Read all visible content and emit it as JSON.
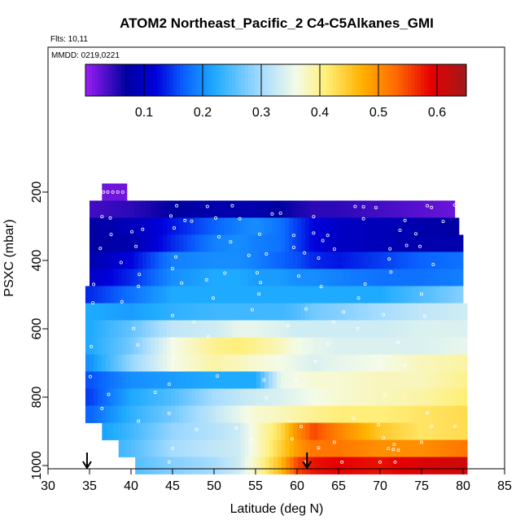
{
  "chart_data": {
    "type": "heatmap",
    "title": "ATOM2 Northeast_Pacific_2 C4-C5Alkanes_GMI",
    "flights_label": "Flts: 10,11",
    "dates_label": "MMDD: 0219,0221",
    "xlabel": "Latitude (deg N)",
    "ylabel": "PSXC (mbar)",
    "xlim": [
      30,
      85
    ],
    "ylim": [
      1000,
      100
    ],
    "x_ticks": [
      30,
      35,
      40,
      45,
      50,
      55,
      60,
      65,
      70,
      75,
      80,
      85
    ],
    "y_ticks": [
      200,
      400,
      600,
      800,
      1000
    ],
    "colorbar": {
      "range": [
        0,
        0.65
      ],
      "ticks": [
        0.1,
        0.2,
        0.3,
        0.4,
        0.5,
        0.6
      ],
      "tick_labels": [
        "0.1",
        "0.2",
        "0.3",
        "0.4",
        "0.5",
        "0.6"
      ],
      "stops": [
        {
          "v": 0.0,
          "c": "#9b1ef5"
        },
        {
          "v": 0.07,
          "c": "#0000a0"
        },
        {
          "v": 0.12,
          "c": "#0000dc"
        },
        {
          "v": 0.17,
          "c": "#0a64ff"
        },
        {
          "v": 0.22,
          "c": "#1eaaff"
        },
        {
          "v": 0.3,
          "c": "#a6dcff"
        },
        {
          "v": 0.36,
          "c": "#f4fbe8"
        },
        {
          "v": 0.41,
          "c": "#ffef7a"
        },
        {
          "v": 0.47,
          "c": "#ffb400"
        },
        {
          "v": 0.53,
          "c": "#ff6a00"
        },
        {
          "v": 0.59,
          "c": "#e60000"
        },
        {
          "v": 0.65,
          "c": "#a01a1a"
        }
      ]
    },
    "lat_knots": [
      35,
      40,
      45,
      50,
      53,
      55,
      58,
      60,
      62,
      65,
      70,
      75,
      80
    ],
    "rows": [
      {
        "p": 200,
        "lat": [
          36.5,
          39.5
        ],
        "v": [
          0.02,
          0.02,
          0.02,
          0.02,
          0.02,
          0.02,
          0.02,
          0.02,
          0.02,
          0.02,
          0.02,
          0.02,
          0.02
        ]
      },
      {
        "p": 250,
        "lat": [
          35,
          79
        ],
        "v": [
          0.04,
          0.05,
          0.07,
          0.08,
          0.08,
          0.08,
          0.07,
          0.06,
          0.05,
          0.05,
          0.04,
          0.03,
          0.02
        ]
      },
      {
        "p": 300,
        "lat": [
          35,
          79.5
        ],
        "v": [
          0.07,
          0.09,
          0.13,
          0.17,
          0.19,
          0.2,
          0.18,
          0.15,
          0.12,
          0.1,
          0.09,
          0.08,
          0.07
        ]
      },
      {
        "p": 350,
        "lat": [
          35,
          80
        ],
        "v": [
          0.07,
          0.08,
          0.14,
          0.19,
          0.2,
          0.19,
          0.18,
          0.15,
          0.12,
          0.1,
          0.09,
          0.08,
          0.08
        ]
      },
      {
        "p": 400,
        "lat": [
          35,
          80
        ],
        "v": [
          0.08,
          0.12,
          0.19,
          0.2,
          0.2,
          0.19,
          0.17,
          0.16,
          0.14,
          0.13,
          0.15,
          0.17,
          0.18
        ]
      },
      {
        "p": 450,
        "lat": [
          35,
          80
        ],
        "v": [
          0.1,
          0.14,
          0.2,
          0.22,
          0.22,
          0.21,
          0.21,
          0.2,
          0.2,
          0.19,
          0.18,
          0.18,
          0.19
        ]
      },
      {
        "p": 500,
        "lat": [
          34.5,
          80
        ],
        "v": [
          0.14,
          0.18,
          0.22,
          0.22,
          0.22,
          0.22,
          0.22,
          0.22,
          0.22,
          0.22,
          0.22,
          0.25,
          0.28
        ]
      },
      {
        "p": 550,
        "lat": [
          34.5,
          80.5
        ],
        "v": [
          0.22,
          0.21,
          0.23,
          0.24,
          0.24,
          0.24,
          0.24,
          0.25,
          0.27,
          0.28,
          0.3,
          0.32,
          0.33
        ]
      },
      {
        "p": 600,
        "lat": [
          34.5,
          80.5
        ],
        "v": [
          0.22,
          0.26,
          0.32,
          0.33,
          0.35,
          0.35,
          0.34,
          0.33,
          0.33,
          0.33,
          0.33,
          0.34,
          0.34
        ]
      },
      {
        "p": 650,
        "lat": [
          34.5,
          80.5
        ],
        "v": [
          0.22,
          0.27,
          0.36,
          0.4,
          0.41,
          0.4,
          0.38,
          0.36,
          0.35,
          0.34,
          0.34,
          0.34,
          0.35
        ]
      },
      {
        "p": 700,
        "lat": [
          34.5,
          80.5
        ],
        "v": [
          0.2,
          0.29,
          0.36,
          0.39,
          0.38,
          0.37,
          0.36,
          0.35,
          0.34,
          0.35,
          0.36,
          0.38,
          0.39
        ]
      },
      {
        "p": 750,
        "lat": [
          34.5,
          80.5
        ],
        "v": [
          0.16,
          0.2,
          0.21,
          0.22,
          0.22,
          0.22,
          0.35,
          0.36,
          0.37,
          0.37,
          0.38,
          0.38,
          0.4
        ]
      },
      {
        "p": 800,
        "lat": [
          34.5,
          80.5
        ],
        "v": [
          0.15,
          0.22,
          0.25,
          0.3,
          0.32,
          0.33,
          0.34,
          0.35,
          0.36,
          0.37,
          0.38,
          0.39,
          0.41
        ]
      },
      {
        "p": 850,
        "lat": [
          34.5,
          80.5
        ],
        "v": [
          0.17,
          0.23,
          0.27,
          0.32,
          0.35,
          0.37,
          0.38,
          0.39,
          0.4,
          0.41,
          0.41,
          0.42,
          0.43
        ]
      },
      {
        "p": 900,
        "lat": [
          36.5,
          80.5
        ],
        "v": [
          0.2,
          0.24,
          0.29,
          0.31,
          0.33,
          0.37,
          0.43,
          0.5,
          0.55,
          0.51,
          0.45,
          0.42,
          0.43
        ]
      },
      {
        "p": 950,
        "lat": [
          38.5,
          80.5
        ],
        "v": [
          0.22,
          0.25,
          0.3,
          0.32,
          0.33,
          0.37,
          0.44,
          0.49,
          0.52,
          0.52,
          0.5,
          0.5,
          0.52
        ]
      },
      {
        "p": 1000,
        "lat": [
          40.5,
          80.5
        ],
        "v": [
          0.22,
          0.25,
          0.28,
          0.3,
          0.33,
          0.38,
          0.46,
          0.55,
          0.58,
          0.59,
          0.58,
          0.6,
          0.61
        ]
      }
    ],
    "arrows": [
      {
        "x": 34.7
      },
      {
        "x": 61.2
      }
    ],
    "points_note": "white open circles mark observation locations",
    "points": [
      [
        36.7,
        200
      ],
      [
        37.2,
        200
      ],
      [
        37.8,
        200
      ],
      [
        38.4,
        200
      ],
      [
        39.0,
        200
      ],
      [
        45.5,
        240
      ],
      [
        49.2,
        242
      ],
      [
        52.2,
        240
      ],
      [
        67.0,
        242
      ],
      [
        68.0,
        243
      ],
      [
        69.5,
        246
      ],
      [
        75.7,
        240
      ],
      [
        76.2,
        245
      ],
      [
        79.0,
        238
      ],
      [
        36.5,
        272
      ],
      [
        37.5,
        276
      ],
      [
        44.8,
        270
      ],
      [
        46.5,
        283
      ],
      [
        47.3,
        285
      ],
      [
        50.2,
        276
      ],
      [
        53.1,
        278
      ],
      [
        57.0,
        264
      ],
      [
        58.0,
        262
      ],
      [
        62.0,
        272
      ],
      [
        68.0,
        278
      ],
      [
        73.0,
        283
      ],
      [
        77.6,
        286
      ],
      [
        37.6,
        324
      ],
      [
        40.1,
        316
      ],
      [
        41.4,
        309
      ],
      [
        45.2,
        305
      ],
      [
        50.6,
        331
      ],
      [
        55.5,
        323
      ],
      [
        59.6,
        327
      ],
      [
        62.0,
        320
      ],
      [
        63.7,
        327
      ],
      [
        72.4,
        312
      ],
      [
        74.3,
        322
      ],
      [
        36.3,
        365
      ],
      [
        40.6,
        359
      ],
      [
        52.0,
        346
      ],
      [
        59.6,
        362
      ],
      [
        63.1,
        342
      ],
      [
        64.5,
        367
      ],
      [
        71.2,
        366
      ],
      [
        73.2,
        356
      ],
      [
        74.8,
        359
      ],
      [
        38.8,
        406
      ],
      [
        45.4,
        390
      ],
      [
        54.2,
        385
      ],
      [
        56.3,
        381
      ],
      [
        60.9,
        378
      ],
      [
        62.6,
        393
      ],
      [
        71.1,
        396
      ],
      [
        76.4,
        412
      ],
      [
        41.0,
        441
      ],
      [
        45.0,
        424
      ],
      [
        51.3,
        437
      ],
      [
        55.2,
        436
      ],
      [
        60.2,
        446
      ],
      [
        71.3,
        434
      ],
      [
        35.5,
        470
      ],
      [
        40.9,
        476
      ],
      [
        46.1,
        466
      ],
      [
        49.1,
        457
      ],
      [
        55.6,
        465
      ],
      [
        62.9,
        477
      ],
      [
        68.2,
        469
      ],
      [
        35.4,
        524
      ],
      [
        38.9,
        521
      ],
      [
        49.9,
        510
      ],
      [
        55.4,
        498
      ],
      [
        67.4,
        510
      ],
      [
        75.0,
        498
      ],
      [
        45.0,
        561
      ],
      [
        54.6,
        544
      ],
      [
        61.1,
        542
      ],
      [
        65.6,
        551
      ],
      [
        70.4,
        559
      ],
      [
        75.4,
        563
      ],
      [
        40.3,
        599
      ],
      [
        47.6,
        580
      ],
      [
        58.9,
        591
      ],
      [
        64.4,
        580
      ],
      [
        67.3,
        599
      ],
      [
        35.2,
        652
      ],
      [
        40.8,
        647
      ],
      [
        49.3,
        623
      ],
      [
        63.7,
        645
      ],
      [
        72.2,
        640
      ],
      [
        45.1,
        690
      ],
      [
        62.2,
        696
      ],
      [
        73.0,
        707
      ],
      [
        35.1,
        740
      ],
      [
        44.6,
        762
      ],
      [
        50.4,
        738
      ],
      [
        56.0,
        750
      ],
      [
        59.9,
        750
      ],
      [
        37.3,
        792
      ],
      [
        42.9,
        786
      ],
      [
        56.3,
        802
      ],
      [
        70.6,
        794
      ],
      [
        36.5,
        833
      ],
      [
        44.6,
        847
      ],
      [
        66.8,
        862
      ],
      [
        75.7,
        846
      ],
      [
        40.9,
        870
      ],
      [
        47.9,
        894
      ],
      [
        52.7,
        890
      ],
      [
        60.5,
        886
      ],
      [
        69.8,
        881
      ],
      [
        76.2,
        885
      ],
      [
        79.0,
        885
      ],
      [
        54.5,
        924
      ],
      [
        59.4,
        922
      ],
      [
        64.5,
        932
      ],
      [
        70.4,
        919
      ],
      [
        71.7,
        938
      ],
      [
        75.0,
        932
      ],
      [
        45.0,
        950
      ],
      [
        62.6,
        948
      ],
      [
        71.0,
        950
      ],
      [
        71.6,
        953
      ],
      [
        72.2,
        955
      ],
      [
        40.3,
        990
      ],
      [
        44.6,
        990
      ],
      [
        60.9,
        990
      ],
      [
        65.4,
        990
      ],
      [
        70.0,
        990
      ],
      [
        71.8,
        990
      ]
    ]
  }
}
